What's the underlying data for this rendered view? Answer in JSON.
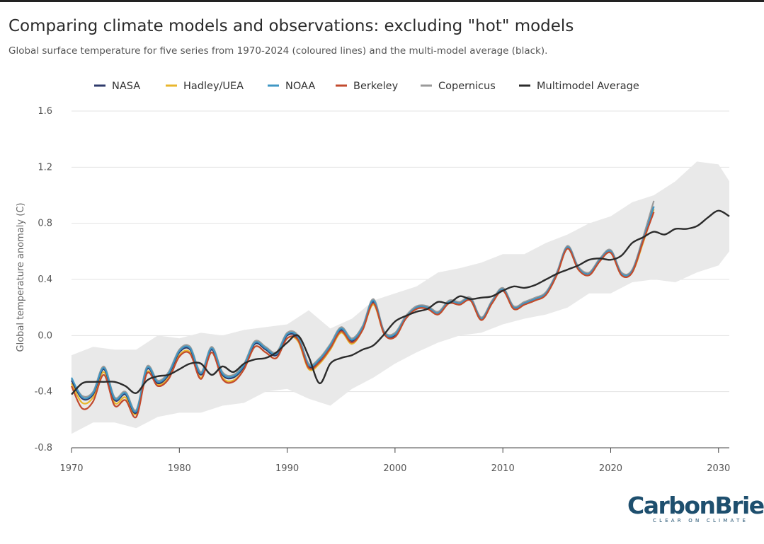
{
  "title": "Comparing climate models and observations: excluding \"hot\" models",
  "subtitle": "Global surface temperature for five series from 1970-2024 (coloured lines) and the multi-model average (black).",
  "brand": {
    "name": "CarbonBrief",
    "tagline": "CLEAR ON CLIMATE"
  },
  "colors": {
    "NASA": "#2e3a6b",
    "Hadley/UEA": "#e8b62c",
    "NOAA": "#3f97c4",
    "Berkeley": "#c24a2e",
    "Copernicus": "#9a9a9a",
    "Multimodel Average": "#2b2b2b",
    "model_range": "#e9e9e9",
    "grid": "#e3e3e3"
  },
  "chart_data": {
    "type": "line",
    "title": "Comparing climate models and observations: excluding \"hot\" models",
    "xlabel": "",
    "ylabel": "Global temperature anomaly (C)",
    "xlim": [
      1970,
      2031
    ],
    "ylim": [
      -0.8,
      1.6
    ],
    "xticks": [
      1970,
      1980,
      1990,
      2000,
      2010,
      2020,
      2030
    ],
    "yticks": [
      -0.8,
      -0.4,
      0.0,
      0.4,
      0.8,
      1.2,
      1.6
    ],
    "ytick_labels": [
      "-0.8",
      "-0.4",
      "0.0",
      "0.4",
      "0.8",
      "1.2",
      "1.6"
    ],
    "grid": "horizontal",
    "legend": "top",
    "legend_entries": [
      "NASA",
      "Hadley/UEA",
      "NOAA",
      "Berkeley",
      "Copernicus",
      "Multimodel Average"
    ],
    "observations_x": [
      1970,
      1971,
      1972,
      1973,
      1974,
      1975,
      1976,
      1977,
      1978,
      1979,
      1980,
      1981,
      1982,
      1983,
      1984,
      1985,
      1986,
      1987,
      1988,
      1989,
      1990,
      1991,
      1992,
      1993,
      1994,
      1995,
      1996,
      1997,
      1998,
      1999,
      2000,
      2001,
      2002,
      2003,
      2004,
      2005,
      2006,
      2007,
      2008,
      2009,
      2010,
      2011,
      2012,
      2013,
      2014,
      2015,
      2016,
      2017,
      2018,
      2019,
      2020,
      2021,
      2022,
      2023,
      2024
    ],
    "series": [
      {
        "name": "NASA",
        "values": [
          -0.32,
          -0.45,
          -0.42,
          -0.24,
          -0.46,
          -0.42,
          -0.55,
          -0.24,
          -0.34,
          -0.28,
          -0.12,
          -0.1,
          -0.28,
          -0.1,
          -0.28,
          -0.3,
          -0.22,
          -0.06,
          -0.1,
          -0.14,
          0.0,
          -0.02,
          -0.22,
          -0.18,
          -0.08,
          0.04,
          -0.04,
          0.05,
          0.24,
          0.02,
          0.0,
          0.12,
          0.2,
          0.2,
          0.16,
          0.24,
          0.23,
          0.26,
          0.12,
          0.24,
          0.33,
          0.2,
          0.23,
          0.26,
          0.3,
          0.44,
          0.63,
          0.48,
          0.44,
          0.54,
          0.6,
          0.44,
          0.46,
          0.68,
          0.92
        ]
      },
      {
        "name": "Hadley/UEA",
        "values": [
          -0.34,
          -0.48,
          -0.44,
          -0.26,
          -0.48,
          -0.44,
          -0.56,
          -0.26,
          -0.35,
          -0.3,
          -0.14,
          -0.12,
          -0.3,
          -0.12,
          -0.3,
          -0.32,
          -0.24,
          -0.08,
          -0.12,
          -0.16,
          -0.02,
          -0.04,
          -0.24,
          -0.2,
          -0.1,
          0.02,
          -0.06,
          0.04,
          0.22,
          0.01,
          -0.01,
          0.12,
          0.19,
          0.19,
          0.15,
          0.23,
          0.22,
          0.25,
          0.11,
          0.23,
          0.32,
          0.19,
          0.22,
          0.25,
          0.29,
          0.43,
          0.62,
          0.47,
          0.43,
          0.53,
          0.59,
          0.43,
          0.45,
          0.66,
          0.9
        ]
      },
      {
        "name": "NOAA",
        "values": [
          -0.3,
          -0.44,
          -0.41,
          -0.23,
          -0.45,
          -0.41,
          -0.54,
          -0.23,
          -0.33,
          -0.27,
          -0.11,
          -0.09,
          -0.27,
          -0.09,
          -0.27,
          -0.29,
          -0.21,
          -0.05,
          -0.09,
          -0.13,
          0.01,
          -0.01,
          -0.21,
          -0.17,
          -0.07,
          0.05,
          -0.03,
          0.06,
          0.25,
          0.02,
          0.01,
          0.13,
          0.2,
          0.2,
          0.16,
          0.24,
          0.23,
          0.26,
          0.12,
          0.24,
          0.33,
          0.2,
          0.23,
          0.26,
          0.3,
          0.44,
          0.63,
          0.48,
          0.44,
          0.54,
          0.6,
          0.44,
          0.46,
          0.68,
          0.92
        ]
      },
      {
        "name": "Berkeley",
        "values": [
          -0.36,
          -0.52,
          -0.47,
          -0.28,
          -0.5,
          -0.46,
          -0.58,
          -0.27,
          -0.36,
          -0.31,
          -0.15,
          -0.13,
          -0.31,
          -0.12,
          -0.31,
          -0.33,
          -0.24,
          -0.08,
          -0.12,
          -0.16,
          -0.02,
          -0.03,
          -0.23,
          -0.19,
          -0.09,
          0.03,
          -0.05,
          0.04,
          0.23,
          0.01,
          -0.01,
          0.12,
          0.19,
          0.19,
          0.15,
          0.23,
          0.22,
          0.25,
          0.11,
          0.23,
          0.32,
          0.19,
          0.22,
          0.25,
          0.29,
          0.43,
          0.62,
          0.47,
          0.43,
          0.53,
          0.59,
          0.43,
          0.45,
          0.67,
          0.88
        ]
      },
      {
        "name": "Copernicus",
        "values": [
          -0.31,
          -0.43,
          -0.4,
          -0.22,
          -0.44,
          -0.4,
          -0.53,
          -0.22,
          -0.32,
          -0.26,
          -0.1,
          -0.08,
          -0.26,
          -0.08,
          -0.26,
          -0.28,
          -0.2,
          -0.04,
          -0.08,
          -0.12,
          0.02,
          0.0,
          -0.2,
          -0.16,
          -0.06,
          0.06,
          -0.02,
          0.07,
          0.26,
          0.03,
          0.02,
          0.14,
          0.21,
          0.21,
          0.17,
          0.25,
          0.24,
          0.27,
          0.13,
          0.25,
          0.34,
          0.21,
          0.24,
          0.27,
          0.31,
          0.45,
          0.64,
          0.49,
          0.45,
          0.55,
          0.61,
          0.45,
          0.47,
          0.7,
          0.96
        ]
      }
    ],
    "multimodel_average": {
      "name": "Multimodel Average",
      "x": [
        1970,
        1971,
        1972,
        1973,
        1974,
        1975,
        1976,
        1977,
        1978,
        1979,
        1980,
        1981,
        1982,
        1983,
        1984,
        1985,
        1986,
        1987,
        1988,
        1989,
        1990,
        1991,
        1992,
        1993,
        1994,
        1995,
        1996,
        1997,
        1998,
        1999,
        2000,
        2001,
        2002,
        2003,
        2004,
        2005,
        2006,
        2007,
        2008,
        2009,
        2010,
        2011,
        2012,
        2013,
        2014,
        2015,
        2016,
        2017,
        2018,
        2019,
        2020,
        2021,
        2022,
        2023,
        2024,
        2025,
        2026,
        2027,
        2028,
        2029,
        2030,
        2031
      ],
      "values": [
        -0.42,
        -0.34,
        -0.33,
        -0.33,
        -0.33,
        -0.36,
        -0.41,
        -0.32,
        -0.29,
        -0.28,
        -0.24,
        -0.2,
        -0.2,
        -0.28,
        -0.22,
        -0.26,
        -0.2,
        -0.17,
        -0.16,
        -0.12,
        -0.05,
        0.0,
        -0.15,
        -0.34,
        -0.2,
        -0.16,
        -0.14,
        -0.1,
        -0.07,
        0.01,
        0.1,
        0.14,
        0.17,
        0.19,
        0.24,
        0.23,
        0.28,
        0.26,
        0.27,
        0.28,
        0.32,
        0.35,
        0.34,
        0.36,
        0.4,
        0.44,
        0.47,
        0.5,
        0.54,
        0.55,
        0.54,
        0.57,
        0.66,
        0.7,
        0.74,
        0.72,
        0.76,
        0.76,
        0.78,
        0.84,
        0.89,
        0.85
      ]
    },
    "model_range": {
      "name": "model range",
      "x": [
        1970,
        1972,
        1974,
        1976,
        1978,
        1980,
        1982,
        1984,
        1986,
        1988,
        1990,
        1992,
        1994,
        1996,
        1998,
        2000,
        2002,
        2004,
        2006,
        2008,
        2010,
        2012,
        2014,
        2016,
        2018,
        2020,
        2022,
        2024,
        2026,
        2028,
        2030,
        2031
      ],
      "upper": [
        -0.14,
        -0.08,
        -0.1,
        -0.1,
        0.0,
        -0.02,
        0.02,
        0.0,
        0.04,
        0.06,
        0.08,
        0.18,
        0.05,
        0.12,
        0.25,
        0.3,
        0.35,
        0.45,
        0.48,
        0.52,
        0.58,
        0.58,
        0.66,
        0.72,
        0.8,
        0.85,
        0.95,
        1.0,
        1.1,
        1.24,
        1.22,
        1.1
      ],
      "lower": [
        -0.7,
        -0.62,
        -0.62,
        -0.66,
        -0.58,
        -0.55,
        -0.55,
        -0.5,
        -0.48,
        -0.4,
        -0.38,
        -0.45,
        -0.5,
        -0.38,
        -0.3,
        -0.2,
        -0.12,
        -0.05,
        0.0,
        0.02,
        0.08,
        0.12,
        0.15,
        0.2,
        0.3,
        0.3,
        0.38,
        0.4,
        0.38,
        0.45,
        0.5,
        0.6
      ]
    }
  }
}
